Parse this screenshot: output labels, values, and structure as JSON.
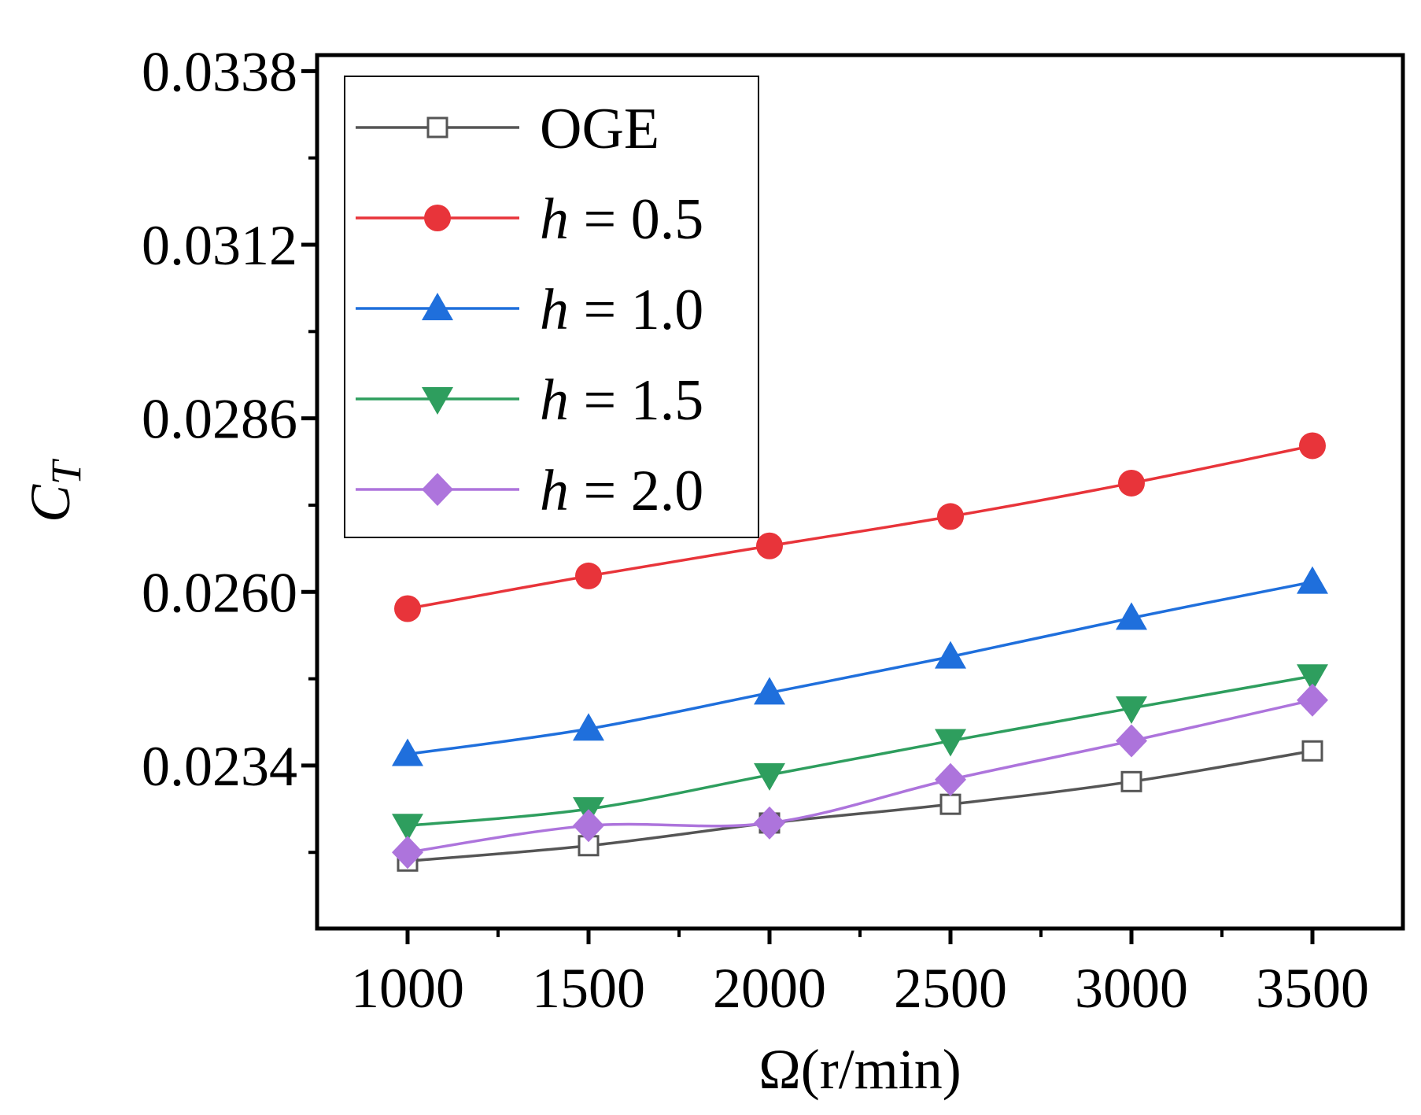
{
  "chart_data": {
    "type": "line",
    "title": "",
    "xlabel": "Ω(r/min)",
    "ylabel": "C",
    "ylabel_subscript": "T",
    "x": [
      1000,
      1500,
      2000,
      2500,
      3000,
      3500
    ],
    "xlim": [
      750,
      3750
    ],
    "ylim": [
      0.02096,
      0.03404
    ],
    "xticks": [
      1000,
      1500,
      2000,
      2500,
      3000,
      3500
    ],
    "xtick_labels": [
      "1000",
      "1500",
      "2000",
      "2500",
      "3000",
      "3500"
    ],
    "xminor_ticks": [
      1250,
      1750,
      2250,
      2750,
      3250
    ],
    "yticks": [
      0.0234,
      0.026,
      0.0286,
      0.0312,
      0.0338
    ],
    "ytick_labels": [
      "0.0234",
      "0.0260",
      "0.0286",
      "0.0312",
      "0.0338"
    ],
    "yminor_ticks": [
      0.0221,
      0.0247,
      0.0273,
      0.0299,
      0.0325
    ],
    "legend_position": "top-left",
    "series": [
      {
        "name": "OGE",
        "label_prefix": "OGE",
        "label_value": "",
        "color": "#555555",
        "marker": "open-square",
        "values": [
          0.02197,
          0.0222,
          0.02254,
          0.02282,
          0.02316,
          0.02362
        ]
      },
      {
        "name": "h = 0.5",
        "label_prefix": "h",
        "label_value": " = 0.5",
        "color": "#e8343a",
        "marker": "circle",
        "values": [
          0.02575,
          0.02624,
          0.02669,
          0.02713,
          0.02763,
          0.02819
        ]
      },
      {
        "name": "h = 1.0",
        "label_prefix": "h",
        "label_value": " = 1.0",
        "color": "#1f6fdc",
        "marker": "triangle-up",
        "values": [
          0.02357,
          0.02395,
          0.02449,
          0.02503,
          0.02561,
          0.02615
        ]
      },
      {
        "name": "h = 1.5",
        "label_prefix": "h",
        "label_value": " = 1.5",
        "color": "#2e9e5e",
        "marker": "triangle-down",
        "values": [
          0.0225,
          0.02275,
          0.02326,
          0.02377,
          0.02426,
          0.02474
        ]
      },
      {
        "name": "h = 2.0",
        "label_prefix": "h",
        "label_value": " = 2.0",
        "color": "#ad74dc",
        "marker": "diamond",
        "values": [
          0.0221,
          0.0225,
          0.02254,
          0.02319,
          0.02377,
          0.02438
        ]
      }
    ]
  }
}
